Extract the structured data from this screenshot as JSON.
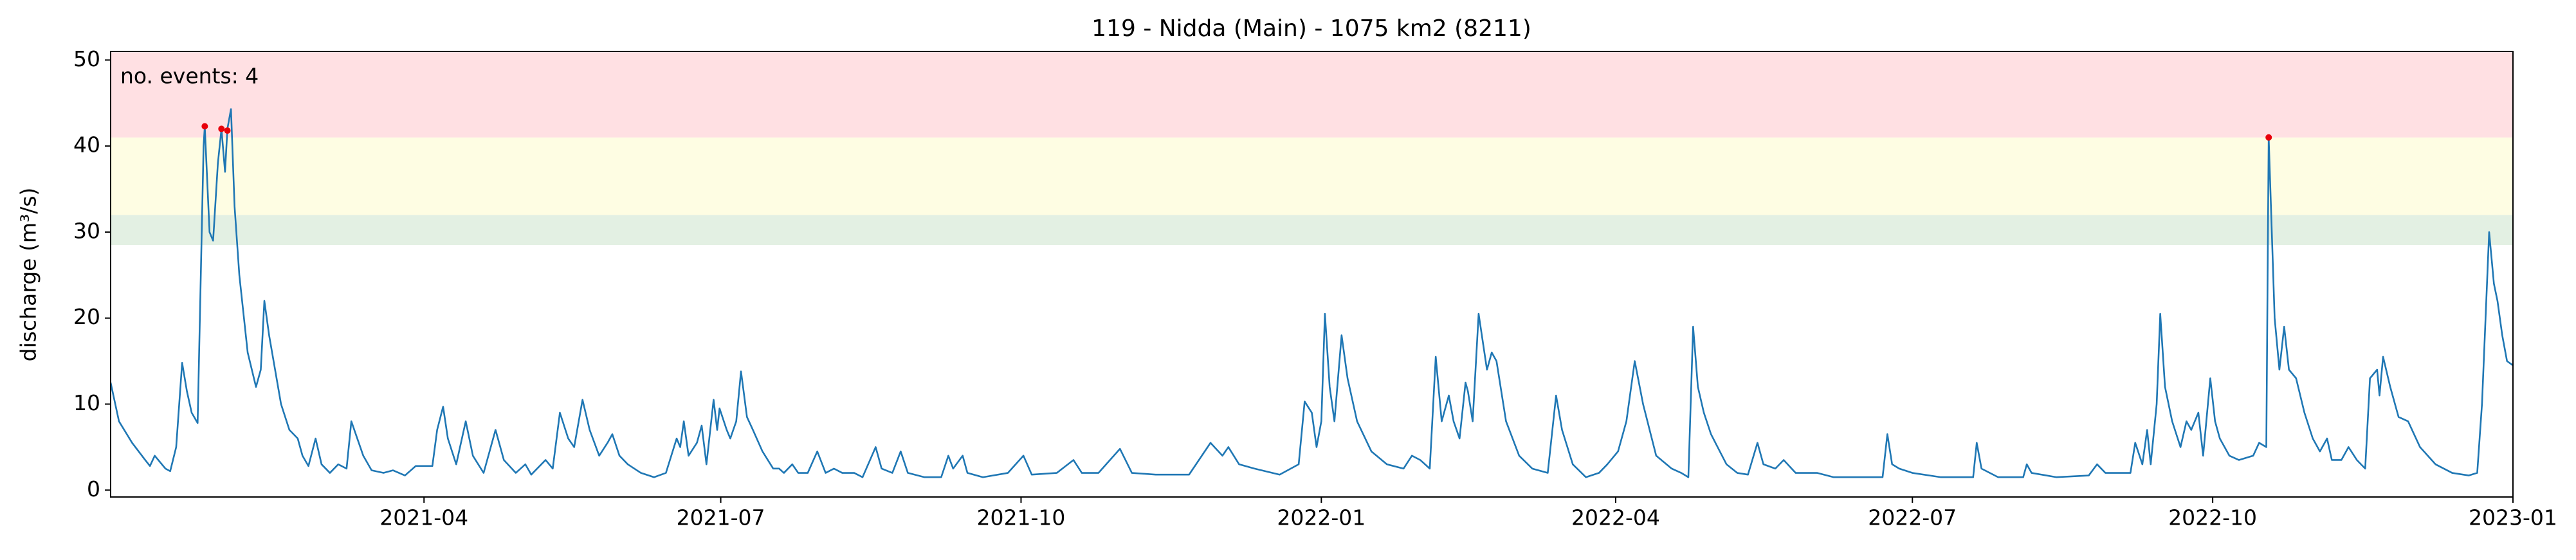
{
  "chart_data": {
    "type": "line",
    "title": "119 - Nidda (Main) - 1075 km2 (8211)",
    "y_label": "discharge (m³/s)",
    "annotation": "no. events: 4",
    "xlim": [
      2020.984,
      2023.0
    ],
    "ylim": [
      -0.8,
      51
    ],
    "xticks": [
      {
        "value": 2021.247,
        "label": "2021-04"
      },
      {
        "value": 2021.496,
        "label": "2021-07"
      },
      {
        "value": 2021.748,
        "label": "2021-10"
      },
      {
        "value": 2022.0,
        "label": "2022-01"
      },
      {
        "value": 2022.247,
        "label": "2022-04"
      },
      {
        "value": 2022.496,
        "label": "2022-07"
      },
      {
        "value": 2022.748,
        "label": "2022-10"
      },
      {
        "value": 2023.0,
        "label": "2023-01"
      }
    ],
    "yticks": [
      0,
      10,
      20,
      30,
      40,
      50
    ],
    "thresholds": [
      {
        "from": 28.5,
        "to": 32,
        "color": "#e3f0e3"
      },
      {
        "from": 32,
        "to": 41,
        "color": "#fefde3"
      },
      {
        "from": 41,
        "to": 51,
        "color": "#ffe0e3"
      }
    ],
    "series": [
      {
        "color": "#1f77b4",
        "x": [
          2020.984,
          2020.991,
          2021.002,
          2021.013,
          2021.017,
          2021.021,
          2021.03,
          2021.034,
          2021.039,
          2021.044,
          2021.048,
          2021.052,
          2021.057,
          2021.062,
          2021.063,
          2021.067,
          2021.07,
          2021.074,
          2021.077,
          2021.08,
          2021.082,
          2021.085,
          2021.088,
          2021.092,
          2021.099,
          2021.106,
          2021.11,
          2021.113,
          2021.117,
          2021.127,
          2021.134,
          2021.141,
          2021.145,
          2021.15,
          2021.156,
          2021.161,
          2021.168,
          2021.175,
          2021.182,
          2021.186,
          2021.191,
          2021.196,
          2021.203,
          2021.213,
          2021.221,
          2021.231,
          2021.24,
          2021.249,
          2021.254,
          2021.258,
          2021.263,
          2021.267,
          2021.274,
          2021.282,
          2021.288,
          2021.297,
          2021.307,
          2021.314,
          2021.324,
          2021.332,
          2021.337,
          2021.349,
          2021.355,
          2021.361,
          2021.368,
          2021.373,
          2021.38,
          2021.386,
          2021.394,
          2021.401,
          2021.405,
          2021.411,
          2021.418,
          2021.429,
          2021.44,
          2021.45,
          2021.459,
          2021.462,
          2021.465,
          2021.469,
          2021.476,
          2021.48,
          2021.484,
          2021.49,
          2021.493,
          2021.495,
          2021.501,
          2021.504,
          2021.509,
          2021.513,
          2021.518,
          2021.523,
          2021.531,
          2021.54,
          2021.545,
          2021.549,
          2021.556,
          2021.561,
          2021.569,
          2021.577,
          2021.584,
          2021.591,
          2021.598,
          2021.608,
          2021.615,
          2021.626,
          2021.631,
          2021.64,
          2021.647,
          2021.653,
          2021.667,
          2021.681,
          2021.687,
          2021.691,
          2021.699,
          2021.703,
          2021.716,
          2021.737,
          2021.75,
          2021.757,
          2021.778,
          2021.792,
          2021.799,
          2021.813,
          2021.831,
          2021.841,
          2021.861,
          2021.889,
          2021.907,
          2021.917,
          2021.922,
          2021.931,
          2021.944,
          2021.965,
          2021.981,
          2021.986,
          2021.992,
          2021.996,
          2022.0,
          2022.003,
          2022.007,
          2022.011,
          2022.017,
          2022.022,
          2022.03,
          2022.042,
          2022.055,
          2022.069,
          2022.076,
          2022.083,
          2022.091,
          2022.096,
          2022.101,
          2022.107,
          2022.111,
          2022.116,
          2022.121,
          2022.123,
          2022.127,
          2022.132,
          2022.139,
          2022.143,
          2022.147,
          2022.155,
          2022.166,
          2022.177,
          2022.19,
          2022.197,
          2022.202,
          2022.211,
          2022.222,
          2022.233,
          2022.24,
          2022.249,
          2022.256,
          2022.263,
          2022.27,
          2022.281,
          2022.294,
          2022.302,
          2022.308,
          2022.312,
          2022.316,
          2022.321,
          2022.327,
          2022.34,
          2022.349,
          2022.358,
          2022.366,
          2022.371,
          2022.381,
          2022.388,
          2022.398,
          2022.416,
          2022.43,
          2022.45,
          2022.471,
          2022.475,
          2022.479,
          2022.485,
          2022.496,
          2022.52,
          2022.547,
          2022.55,
          2022.554,
          2022.568,
          2022.589,
          2022.592,
          2022.596,
          2022.617,
          2022.644,
          2022.651,
          2022.658,
          2022.679,
          2022.683,
          2022.689,
          2022.693,
          2022.696,
          2022.701,
          2022.704,
          2022.708,
          2022.714,
          2022.721,
          2022.726,
          2022.73,
          2022.736,
          2022.74,
          2022.746,
          2022.75,
          2022.754,
          2022.762,
          2022.77,
          2022.782,
          2022.787,
          2022.793,
          2022.795,
          2022.8,
          2022.804,
          2022.808,
          2022.812,
          2022.818,
          2022.825,
          2022.832,
          2022.838,
          2022.844,
          2022.848,
          2022.856,
          2022.862,
          2022.869,
          2022.876,
          2022.88,
          2022.886,
          2022.888,
          2022.891,
          2022.897,
          2022.904,
          2022.912,
          2022.922,
          2022.935,
          2022.949,
          2022.963,
          2022.97,
          2022.974,
          2022.977,
          2022.98,
          2022.984,
          2022.987,
          2022.991,
          2022.995,
          2023.0
        ],
        "values": [
          12.5,
          8,
          5.5,
          3.5,
          2.8,
          4,
          2.5,
          2.2,
          5,
          14.8,
          11.5,
          9,
          7.8,
          40,
          42.3,
          30,
          29,
          38,
          42,
          37,
          42,
          44.3,
          33,
          25,
          16,
          12,
          14,
          22,
          18,
          10,
          7,
          6,
          4,
          2.8,
          6,
          3,
          2,
          3,
          2.5,
          8,
          6,
          4,
          2.3,
          2,
          2.3,
          1.7,
          2.8,
          2.8,
          2.8,
          7,
          9.7,
          6,
          3,
          8,
          4,
          2,
          7,
          3.5,
          2,
          3,
          1.8,
          3.5,
          2.5,
          9,
          6,
          5,
          10.5,
          7,
          4,
          5.5,
          6.5,
          4,
          3,
          2,
          1.5,
          2,
          6,
          5,
          8,
          4,
          5.5,
          7.5,
          3,
          10.5,
          7,
          9.5,
          7,
          6,
          8,
          13.8,
          8.5,
          7,
          4.5,
          2.5,
          2.5,
          2,
          3,
          2,
          2,
          4.5,
          2,
          2.5,
          2,
          2,
          1.5,
          5,
          2.5,
          2,
          4.5,
          2,
          1.5,
          1.5,
          4,
          2.5,
          4,
          2,
          1.5,
          2,
          4,
          1.8,
          2,
          3.5,
          2,
          2,
          4.8,
          2,
          1.8,
          1.8,
          5.5,
          4,
          5,
          3,
          2.5,
          1.8,
          3,
          10.3,
          9,
          5,
          8,
          20.5,
          12,
          8,
          18,
          13,
          8,
          4.5,
          3,
          2.5,
          4,
          3.5,
          2.5,
          15.5,
          8,
          11,
          8,
          6,
          12.5,
          11.5,
          8,
          20.5,
          14,
          16,
          15,
          8,
          4,
          2.5,
          2,
          11,
          7,
          3,
          1.5,
          2,
          3,
          4.5,
          8,
          15,
          10,
          4,
          2.5,
          2,
          1.5,
          19,
          12,
          9,
          6.5,
          3,
          2,
          1.8,
          5.5,
          3,
          2.5,
          3.5,
          2,
          2,
          1.5,
          1.5,
          1.5,
          6.5,
          3,
          2.5,
          2,
          1.5,
          1.5,
          5.5,
          2.5,
          1.5,
          1.5,
          3,
          2,
          1.5,
          1.7,
          3,
          2,
          2,
          5.5,
          3,
          7,
          3,
          10,
          20.5,
          12,
          8,
          5,
          8,
          7,
          9,
          4,
          13,
          8,
          6,
          4,
          3.5,
          4,
          5.5,
          5,
          41,
          20,
          14,
          19,
          14,
          13,
          9,
          6,
          4.5,
          6,
          3.5,
          3.5,
          5,
          3.5,
          2.5,
          13,
          14,
          11,
          15.5,
          12,
          8.5,
          8,
          5,
          3,
          2,
          1.7,
          2,
          10,
          20,
          30,
          24,
          22,
          18,
          15,
          14.5
        ]
      }
    ],
    "events": {
      "color": "#e8000b",
      "x": [
        2021.063,
        2021.077,
        2021.082,
        2022.795
      ],
      "values": [
        42.3,
        42,
        41.8,
        41
      ]
    }
  }
}
